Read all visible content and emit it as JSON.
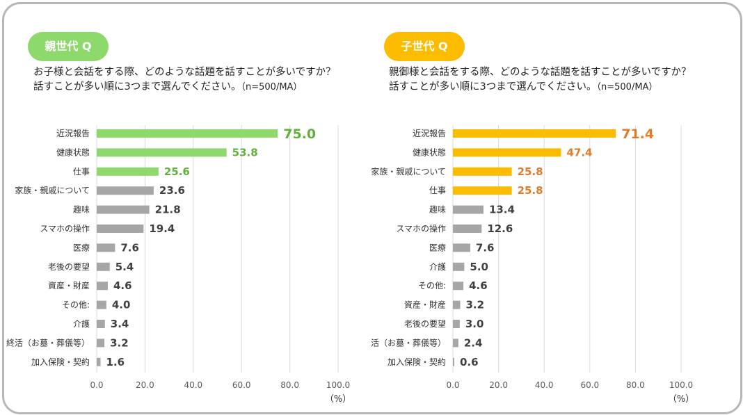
{
  "colors": {
    "parent_accent": "#8ed96c",
    "parent_value_text": "#5fb13a",
    "child_accent": "#fbbc00",
    "child_value_text": "#e07b2a",
    "gray_bar": "#a6a6a6",
    "gray_value_text": "#404040"
  },
  "parent": {
    "badge": "親世代 Q",
    "question_line1": "お子様と会話をする際、どのような話題を話すことが多いですか？",
    "question_line2": "話すことが多い順に3つまで選んでください。",
    "question_note": "（n=500/MA）"
  },
  "child": {
    "badge": "子世代 Q",
    "question_line1": "親御様と会話をする際、どのような話題を話すことが多いですか？",
    "question_line2": "話すことが多い順に3つまで選んでください。",
    "question_note": "（n=500/MA）"
  },
  "chart_data": [
    {
      "type": "bar",
      "orientation": "horizontal",
      "title": "親世代 Q",
      "categories": [
        "近況報告",
        "健康状態",
        "仕事",
        "家族・親戚について",
        "趣味",
        "スマホの操作",
        "医療",
        "老後の要望",
        "資産・財産",
        "その他:",
        "介護",
        "終活（お墓・葬儀等）",
        "加入保険・契約"
      ],
      "values": [
        75.0,
        53.8,
        25.6,
        23.6,
        21.8,
        19.4,
        7.6,
        5.4,
        4.6,
        4.0,
        3.4,
        3.2,
        1.6
      ],
      "labels": [
        "75.0",
        "53.8",
        "25.6",
        "23.6",
        "21.8",
        "19.4",
        "7.6",
        "5.4",
        "4.6",
        "4.0",
        "3.4",
        "3.2",
        "1.6"
      ],
      "highlight_top": 3,
      "xlim": [
        0,
        100
      ],
      "xticks": [
        "0.0",
        "20.0",
        "40.0",
        "60.0",
        "80.0",
        "100.0"
      ],
      "xlabel": "（%）",
      "grid": true
    },
    {
      "type": "bar",
      "orientation": "horizontal",
      "title": "子世代 Q",
      "categories": [
        "近況報告",
        "健康状態",
        "家族・親戚について",
        "仕事",
        "趣味",
        "スマホの操作",
        "医療",
        "介護",
        "その他:",
        "資産・財産",
        "老後の要望",
        "終活（お墓・葬儀等）",
        "加入保険・契約"
      ],
      "values": [
        71.4,
        47.4,
        25.8,
        25.8,
        13.4,
        12.6,
        7.6,
        5.0,
        4.6,
        3.2,
        3.0,
        2.4,
        0.6
      ],
      "labels": [
        "71.4",
        "47.4",
        "25.8",
        "25.8",
        "13.4",
        "12.6",
        "7.6",
        "5.0",
        "4.6",
        "3.2",
        "3.0",
        "2.4",
        "0.6"
      ],
      "highlight_top": 4,
      "xlim": [
        0,
        100
      ],
      "xticks": [
        "0.0",
        "20.0",
        "40.0",
        "60.0",
        "80.0",
        "100.0"
      ],
      "xlabel": "（%）",
      "grid": true
    }
  ]
}
